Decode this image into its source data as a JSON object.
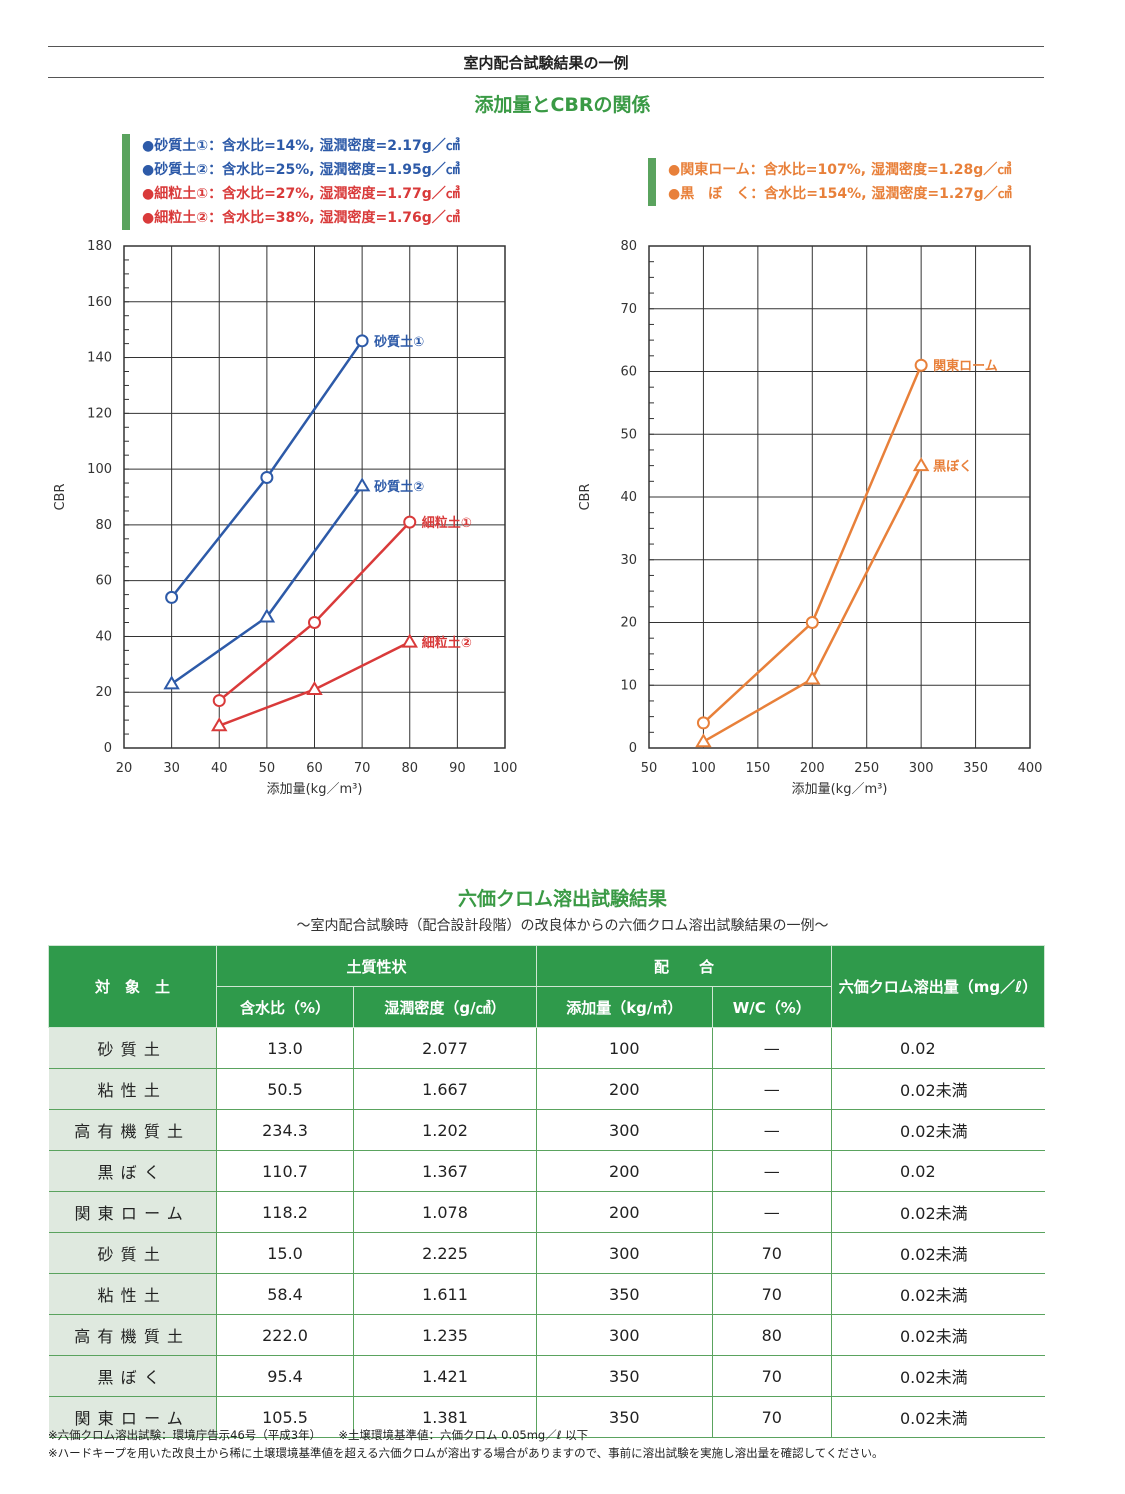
{
  "header": {
    "title": "室内配合試験結果の一例"
  },
  "cbr_section": {
    "title": "添加量とCBRの関係"
  },
  "legend_left": [
    {
      "text": "●砂質土①：含水比=14%, 湿潤密度=2.17g／㎤",
      "color": "#2d5aa8"
    },
    {
      "text": "●砂質土②：含水比=25%, 湿潤密度=1.95g／㎤",
      "color": "#2d5aa8"
    },
    {
      "text": "●細粒土①：含水比=27%, 湿潤密度=1.77g／㎤",
      "color": "#d93a3a"
    },
    {
      "text": "●細粒土②：含水比=38%, 湿潤密度=1.76g／㎤",
      "color": "#d93a3a"
    }
  ],
  "legend_right": [
    {
      "text": "●関東ローム：含水比=107%, 湿潤密度=1.28g／㎤",
      "color": "#e8803a"
    },
    {
      "text": "●黒　ぼ　く：含水比=154%, 湿潤密度=1.27g／㎤",
      "color": "#e8803a"
    }
  ],
  "chart_data": [
    {
      "type": "line",
      "xlabel": "添加量(kg／m³)",
      "ylabel": "CBR",
      "xlim": [
        20,
        100
      ],
      "ylim": [
        0,
        180
      ],
      "xticks": [
        20,
        30,
        40,
        50,
        60,
        70,
        80,
        90,
        100
      ],
      "yticks": [
        0,
        20,
        40,
        60,
        80,
        100,
        120,
        140,
        160,
        180
      ],
      "grid": true,
      "series": [
        {
          "name": "砂質土①",
          "marker": "circle",
          "color": "#2d5aa8",
          "x": [
            30,
            50,
            70
          ],
          "y": [
            54,
            97,
            146
          ]
        },
        {
          "name": "砂質土②",
          "marker": "triangle",
          "color": "#2d5aa8",
          "x": [
            30,
            50,
            70
          ],
          "y": [
            23,
            47,
            94
          ]
        },
        {
          "name": "細粒土①",
          "marker": "circle",
          "color": "#d93a3a",
          "x": [
            40,
            60,
            80
          ],
          "y": [
            17,
            45,
            81
          ]
        },
        {
          "name": "細粒土②",
          "marker": "triangle",
          "color": "#d93a3a",
          "x": [
            40,
            60,
            80
          ],
          "y": [
            8,
            21,
            38
          ]
        }
      ]
    },
    {
      "type": "line",
      "xlabel": "添加量(kg／m³)",
      "ylabel": "CBR",
      "xlim": [
        50,
        400
      ],
      "ylim": [
        0,
        80
      ],
      "xticks": [
        50,
        100,
        150,
        200,
        250,
        300,
        350,
        400
      ],
      "yticks": [
        0,
        10,
        20,
        30,
        40,
        50,
        60,
        70,
        80
      ],
      "grid": true,
      "series": [
        {
          "name": "関東ローム",
          "marker": "circle",
          "color": "#e8803a",
          "x": [
            100,
            200,
            300
          ],
          "y": [
            4,
            20,
            61
          ]
        },
        {
          "name": "黒ぼく",
          "marker": "triangle",
          "color": "#e8803a",
          "x": [
            100,
            200,
            300
          ],
          "y": [
            1,
            11,
            45
          ]
        }
      ]
    }
  ],
  "cr_section": {
    "title": "六価クロム溶出試験結果",
    "subtitle": "〜室内配合試験時（配合設計段階）の改良体からの六価クロム溶出試験結果の一例〜"
  },
  "table": {
    "header_group1": "対　象　土",
    "header_group2": "土質性状",
    "header_group3": "配　　合",
    "header_group4": "六価クロム溶出量（mg／ℓ）",
    "sub_headers": [
      "含水比（%）",
      "湿潤密度（g/㎤）",
      "添加量（kg/㎥）",
      "W/C（%）"
    ],
    "rows": [
      [
        "砂質土",
        "13.0",
        "2.077",
        "100",
        "—",
        "0.02"
      ],
      [
        "粘性土",
        "50.5",
        "1.667",
        "200",
        "—",
        "0.02未満"
      ],
      [
        "高有機質土",
        "234.3",
        "1.202",
        "300",
        "—",
        "0.02未満"
      ],
      [
        "黒ぼく",
        "110.7",
        "1.367",
        "200",
        "—",
        "0.02"
      ],
      [
        "関東ローム",
        "118.2",
        "1.078",
        "200",
        "—",
        "0.02未満"
      ],
      [
        "砂質土",
        "15.0",
        "2.225",
        "300",
        "70",
        "0.02未満"
      ],
      [
        "粘性土",
        "58.4",
        "1.611",
        "350",
        "70",
        "0.02未満"
      ],
      [
        "高有機質土",
        "222.0",
        "1.235",
        "300",
        "80",
        "0.02未満"
      ],
      [
        "黒ぼく",
        "95.4",
        "1.421",
        "350",
        "70",
        "0.02未満"
      ],
      [
        "関東ローム",
        "105.5",
        "1.381",
        "350",
        "70",
        "0.02未満"
      ]
    ]
  },
  "notes": [
    "※六価クロム溶出試験：環境庁告示46号（平成3年）　　※土壌環境基準値：六価クロム 0.05mg／ℓ 以下",
    "※ハードキープを用いた改良土から稀に土壌環境基準値を超える六価クロムが溶出する場合がありますので、事前に溶出試験を実施し溶出量を確認してください。"
  ]
}
